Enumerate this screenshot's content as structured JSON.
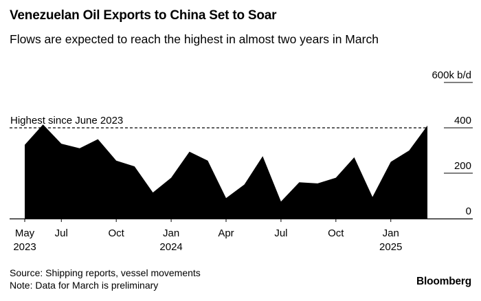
{
  "header": {
    "title": "Venezuelan Oil Exports to China Set to Soar",
    "subtitle": "Flows are expected to reach the highest in almost two years in March"
  },
  "footer": {
    "source": "Source: Shipping reports, vessel movements",
    "note": "Note: Data for March is preliminary",
    "brand": "Bloomberg"
  },
  "chart_data": {
    "type": "area",
    "title": "Venezuelan Oil Exports to China Set to Soar",
    "subtitle": "Flows are expected to reach the highest in almost two years in March",
    "unit_label": "600k b/d",
    "x": [
      "2023-05",
      "2023-06",
      "2023-07",
      "2023-08",
      "2023-09",
      "2023-10",
      "2023-11",
      "2023-12",
      "2024-01",
      "2024-02",
      "2024-03",
      "2024-04",
      "2024-05",
      "2024-06",
      "2024-07",
      "2024-08",
      "2024-09",
      "2024-10",
      "2024-11",
      "2024-12",
      "2025-01",
      "2025-02",
      "2025-03"
    ],
    "series": [
      {
        "name": "Venezuelan oil exports to China (b/d)",
        "values": [
          325000,
          415000,
          330000,
          310000,
          350000,
          255000,
          230000,
          115000,
          180000,
          295000,
          255000,
          90000,
          150000,
          275000,
          75000,
          160000,
          155000,
          180000,
          270000,
          95000,
          250000,
          300000,
          410000
        ]
      }
    ],
    "ylim": [
      0,
      600000
    ],
    "y_ticks": [
      {
        "value": 0,
        "label": "0"
      },
      {
        "value": 200000,
        "label": "200"
      },
      {
        "value": 400000,
        "label": "400"
      },
      {
        "value": 600000,
        "label": "600k b/d"
      }
    ],
    "x_ticks": [
      {
        "index": 0,
        "label": "May",
        "year": "2023"
      },
      {
        "index": 2,
        "label": "Jul",
        "year": ""
      },
      {
        "index": 5,
        "label": "Oct",
        "year": ""
      },
      {
        "index": 8,
        "label": "Jan",
        "year": "2024"
      },
      {
        "index": 11,
        "label": "Apr",
        "year": ""
      },
      {
        "index": 14,
        "label": "Jul",
        "year": ""
      },
      {
        "index": 17,
        "label": "Oct",
        "year": ""
      },
      {
        "index": 20,
        "label": "Jan",
        "year": "2025"
      }
    ],
    "reference_line": {
      "value": 400000,
      "label": "Highest since June 2023",
      "style": "dashed"
    },
    "colors": {
      "fill": "#000000",
      "axis": "#000000",
      "background": "#ffffff"
    }
  }
}
